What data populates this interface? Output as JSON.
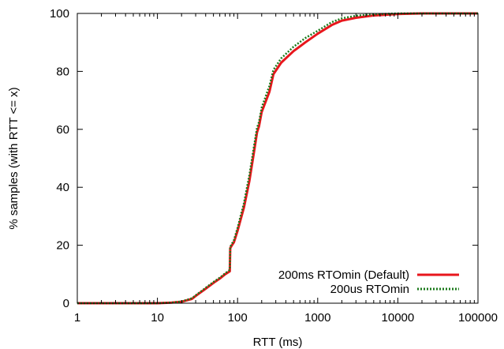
{
  "chart_data": {
    "type": "line",
    "xlabel": "RTT (ms)",
    "ylabel": "% samples (with RTT <= x)",
    "x_scale": "log",
    "xlim": [
      1,
      100000
    ],
    "ylim": [
      0,
      100
    ],
    "x_ticks": [
      {
        "value": 1,
        "label": "1"
      },
      {
        "value": 10,
        "label": "10"
      },
      {
        "value": 100,
        "label": "100"
      },
      {
        "value": 1000,
        "label": "1000"
      },
      {
        "value": 10000,
        "label": "10000"
      },
      {
        "value": 100000,
        "label": "100000"
      }
    ],
    "y_ticks": [
      {
        "value": 0,
        "label": "0"
      },
      {
        "value": 20,
        "label": "20"
      },
      {
        "value": 40,
        "label": "40"
      },
      {
        "value": 60,
        "label": "60"
      },
      {
        "value": 80,
        "label": "80"
      },
      {
        "value": 100,
        "label": "100"
      }
    ],
    "grid": false,
    "legend_position": "bottom-right",
    "series": [
      {
        "name": "200ms RTOmin (Default)",
        "color": "#e8161c",
        "style": "solid",
        "points": [
          [
            1,
            0
          ],
          [
            5,
            0
          ],
          [
            10,
            0
          ],
          [
            15,
            0.2
          ],
          [
            20,
            0.5
          ],
          [
            27,
            1.5
          ],
          [
            30,
            2.5
          ],
          [
            40,
            5
          ],
          [
            50,
            7
          ],
          [
            60,
            8.5
          ],
          [
            70,
            10
          ],
          [
            80,
            11
          ],
          [
            81,
            19
          ],
          [
            85,
            20
          ],
          [
            90,
            21
          ],
          [
            100,
            25
          ],
          [
            120,
            33
          ],
          [
            140,
            42
          ],
          [
            160,
            52
          ],
          [
            175,
            59
          ],
          [
            185,
            61
          ],
          [
            200,
            66
          ],
          [
            250,
            73
          ],
          [
            280,
            79
          ],
          [
            350,
            83
          ],
          [
            500,
            87
          ],
          [
            700,
            90
          ],
          [
            1000,
            93
          ],
          [
            1500,
            96
          ],
          [
            2000,
            97.5
          ],
          [
            3000,
            98.5
          ],
          [
            5000,
            99.3
          ],
          [
            10000,
            99.8
          ],
          [
            20000,
            100
          ],
          [
            50000,
            100
          ],
          [
            100000,
            100
          ]
        ]
      },
      {
        "name": "200us RTOmin",
        "color": "#1b7a1b",
        "style": "dotted",
        "points": [
          [
            1,
            0
          ],
          [
            5,
            0
          ],
          [
            10,
            0
          ],
          [
            15,
            0.2
          ],
          [
            20,
            0.6
          ],
          [
            27,
            1.7
          ],
          [
            30,
            2.7
          ],
          [
            40,
            5.3
          ],
          [
            50,
            7.3
          ],
          [
            60,
            8.8
          ],
          [
            70,
            10.3
          ],
          [
            80,
            11.5
          ],
          [
            81,
            19.5
          ],
          [
            85,
            20.5
          ],
          [
            90,
            21.7
          ],
          [
            100,
            26
          ],
          [
            120,
            34.5
          ],
          [
            140,
            44
          ],
          [
            160,
            54
          ],
          [
            175,
            60.5
          ],
          [
            185,
            62.5
          ],
          [
            200,
            67.5
          ],
          [
            250,
            75
          ],
          [
            280,
            80.5
          ],
          [
            350,
            84.5
          ],
          [
            500,
            88.5
          ],
          [
            700,
            91.5
          ],
          [
            1000,
            94
          ],
          [
            1500,
            97
          ],
          [
            2000,
            98.3
          ],
          [
            3000,
            99.2
          ],
          [
            5000,
            99.7
          ],
          [
            10000,
            100
          ],
          [
            100000,
            100
          ]
        ]
      }
    ]
  }
}
